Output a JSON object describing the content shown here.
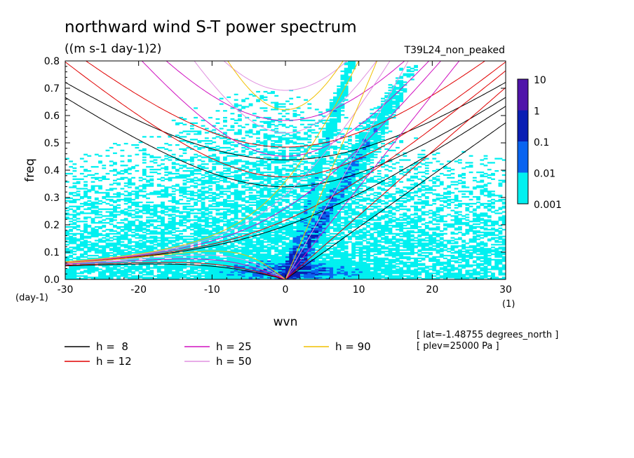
{
  "chart_data": {
    "type": "heatmap",
    "title": "northward wind S-T power spectrum",
    "subtitle": "((m s-1 day-1)2)",
    "run_label": "T39L24_non_peaked",
    "xlabel": "wvn",
    "x_unit": "(1)",
    "ylabel": "freq",
    "y_unit": "(day-1)",
    "xlim": [
      -30,
      30
    ],
    "ylim": [
      0,
      0.8
    ],
    "x_ticks": [
      -30,
      -20,
      -10,
      0,
      10,
      20,
      30
    ],
    "y_ticks": [
      0.0,
      0.1,
      0.2,
      0.3,
      0.4,
      0.5,
      0.6,
      0.7,
      0.8
    ],
    "x_tick_labels": [
      "-30",
      "-20",
      "-10",
      "0",
      "10",
      "20",
      "30"
    ],
    "y_tick_labels": [
      "0.0",
      "0.1",
      "0.2",
      "0.3",
      "0.4",
      "0.5",
      "0.6",
      "0.7",
      "0.8"
    ],
    "colorbar": {
      "levels": [
        "0.001",
        "0.01",
        "0.1",
        "1",
        "10"
      ],
      "colors": [
        "#00f0f0",
        "#0a64f0",
        "#0a1eb4",
        "#5014aa"
      ]
    },
    "legend": [
      {
        "label": "h =  8",
        "color": "#000000"
      },
      {
        "label": "h = 12",
        "color": "#e00000"
      },
      {
        "label": "h = 25",
        "color": "#d010c0"
      },
      {
        "label": "h = 50",
        "color": "#e090e0"
      },
      {
        "label": "h = 90",
        "color": "#f0c000"
      }
    ],
    "info": [
      "[ lat=-1.48755 degrees_north ]",
      "[ plev=25000 Pa ]"
    ],
    "dispersion_depths": [
      8,
      12,
      25,
      50,
      90
    ]
  }
}
